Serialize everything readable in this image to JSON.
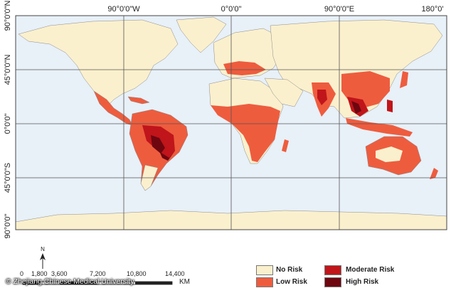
{
  "map": {
    "top_labels": [
      "90°0'0\"W",
      "0°0'0\"",
      "90°0'0\"E",
      "180°0'"
    ],
    "left_labels": [
      "90°0'0\"N",
      "45°0'0\"N",
      "0°0'0\"",
      "45°0'0\"S",
      "90°0'0\""
    ],
    "colors": {
      "ocean": "#e8f0f8",
      "no_risk": "#fbf0cd",
      "low_risk": "#ee5c3e",
      "moderate_risk": "#c0151a",
      "high_risk": "#6e0610"
    }
  },
  "legend": [
    {
      "label": "No Risk",
      "color": "#fbf0cd"
    },
    {
      "label": "Moderate Risk",
      "color": "#c0151a"
    },
    {
      "label": "Low Risk",
      "color": "#ee5c3e"
    },
    {
      "label": "High Risk",
      "color": "#6e0610"
    }
  ],
  "scale_bar": {
    "ticks": [
      "0",
      "1,800",
      "3,600",
      "7,200",
      "10,800",
      "14,400"
    ],
    "unit": "KM",
    "north": "N"
  },
  "credit": "© Zhejiang Chinese Medical University"
}
